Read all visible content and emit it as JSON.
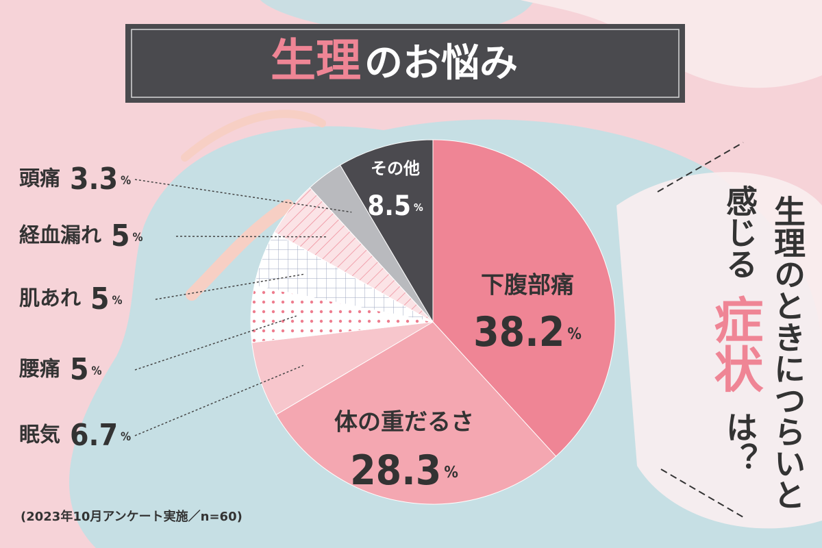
{
  "chart_data": {
    "type": "pie",
    "title_accent": "生理",
    "title": "のお悩み",
    "side_text": [
      "生理のときにつらいと",
      "感じる",
      "症状",
      "は？"
    ],
    "note": "(2023年10月アンケート実施／n=60)",
    "unit": "%",
    "categories": [
      "下腹部痛",
      "体の重だるさ",
      "眠気",
      "腰痛",
      "肌あれ",
      "経血漏れ",
      "頭痛",
      "その他"
    ],
    "values": [
      38.2,
      28.3,
      6.7,
      5,
      5,
      5,
      3.3,
      8.5
    ],
    "colors": [
      "#ef8595",
      "#f4a7b1",
      "#f7c6cc",
      "#ee7d8e",
      "#9aa3bd",
      "#ee8b99",
      "#b9babe",
      "#4b4a4f"
    ],
    "patterns": [
      "solid",
      "solid",
      "solid",
      "dots",
      "grid",
      "stripes",
      "solid",
      "solid"
    ]
  }
}
